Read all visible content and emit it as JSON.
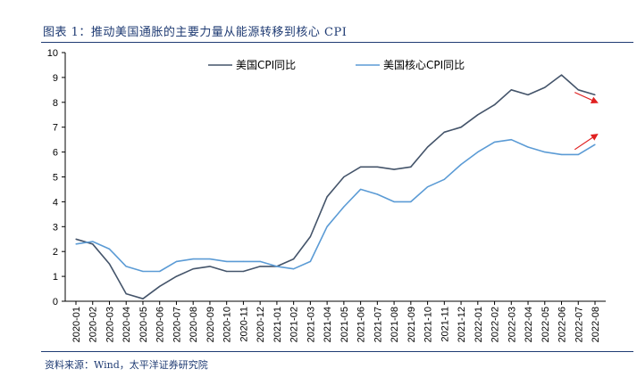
{
  "header": {
    "title": "图表 1：推动美国通胀的主要力量从能源转移到核心 CPI"
  },
  "footer": {
    "source": "资料来源：Wind，太平洋证券研究院"
  },
  "chart_data": {
    "type": "line",
    "title": "",
    "xlabel": "",
    "ylabel": "",
    "ylim": [
      0,
      10
    ],
    "yticks": [
      0,
      1,
      2,
      3,
      4,
      5,
      6,
      7,
      8,
      9,
      10
    ],
    "grid": false,
    "legend_position": "top",
    "categories": [
      "2020-01",
      "2020-02",
      "2020-03",
      "2020-04",
      "2020-05",
      "2020-06",
      "2020-07",
      "2020-08",
      "2020-09",
      "2020-10",
      "2020-11",
      "2020-12",
      "2021-01",
      "2021-02",
      "2021-03",
      "2021-04",
      "2021-05",
      "2021-06",
      "2021-07",
      "2021-08",
      "2021-09",
      "2021-10",
      "2021-11",
      "2021-12",
      "2022-01",
      "2022-02",
      "2022-03",
      "2022-04",
      "2022-05",
      "2022-06",
      "2022-07",
      "2022-08"
    ],
    "series": [
      {
        "name": "美国CPI同比",
        "color": "#44546a",
        "values": [
          2.5,
          2.3,
          1.5,
          0.3,
          0.1,
          0.6,
          1.0,
          1.3,
          1.4,
          1.2,
          1.2,
          1.4,
          1.4,
          1.7,
          2.6,
          4.2,
          5.0,
          5.4,
          5.4,
          5.3,
          5.4,
          6.2,
          6.8,
          7.0,
          7.5,
          7.9,
          8.5,
          8.3,
          8.6,
          9.1,
          8.5,
          8.3
        ]
      },
      {
        "name": "美国核心CPI同比",
        "color": "#5b9bd5",
        "values": [
          2.3,
          2.4,
          2.1,
          1.4,
          1.2,
          1.2,
          1.6,
          1.7,
          1.7,
          1.6,
          1.6,
          1.6,
          1.4,
          1.3,
          1.6,
          3.0,
          3.8,
          4.5,
          4.3,
          4.0,
          4.0,
          4.6,
          4.9,
          5.5,
          6.0,
          6.4,
          6.5,
          6.2,
          6.0,
          5.9,
          5.9,
          6.3
        ]
      }
    ],
    "annotations": [
      {
        "type": "arrow",
        "color": "#e02020",
        "direction": "down",
        "from": [
          "2022-07",
          8.4
        ],
        "to": [
          "2022-08",
          8.0
        ]
      },
      {
        "type": "arrow",
        "color": "#e02020",
        "direction": "up",
        "from": [
          "2022-07",
          6.1
        ],
        "to": [
          "2022-08",
          6.7
        ]
      }
    ]
  }
}
